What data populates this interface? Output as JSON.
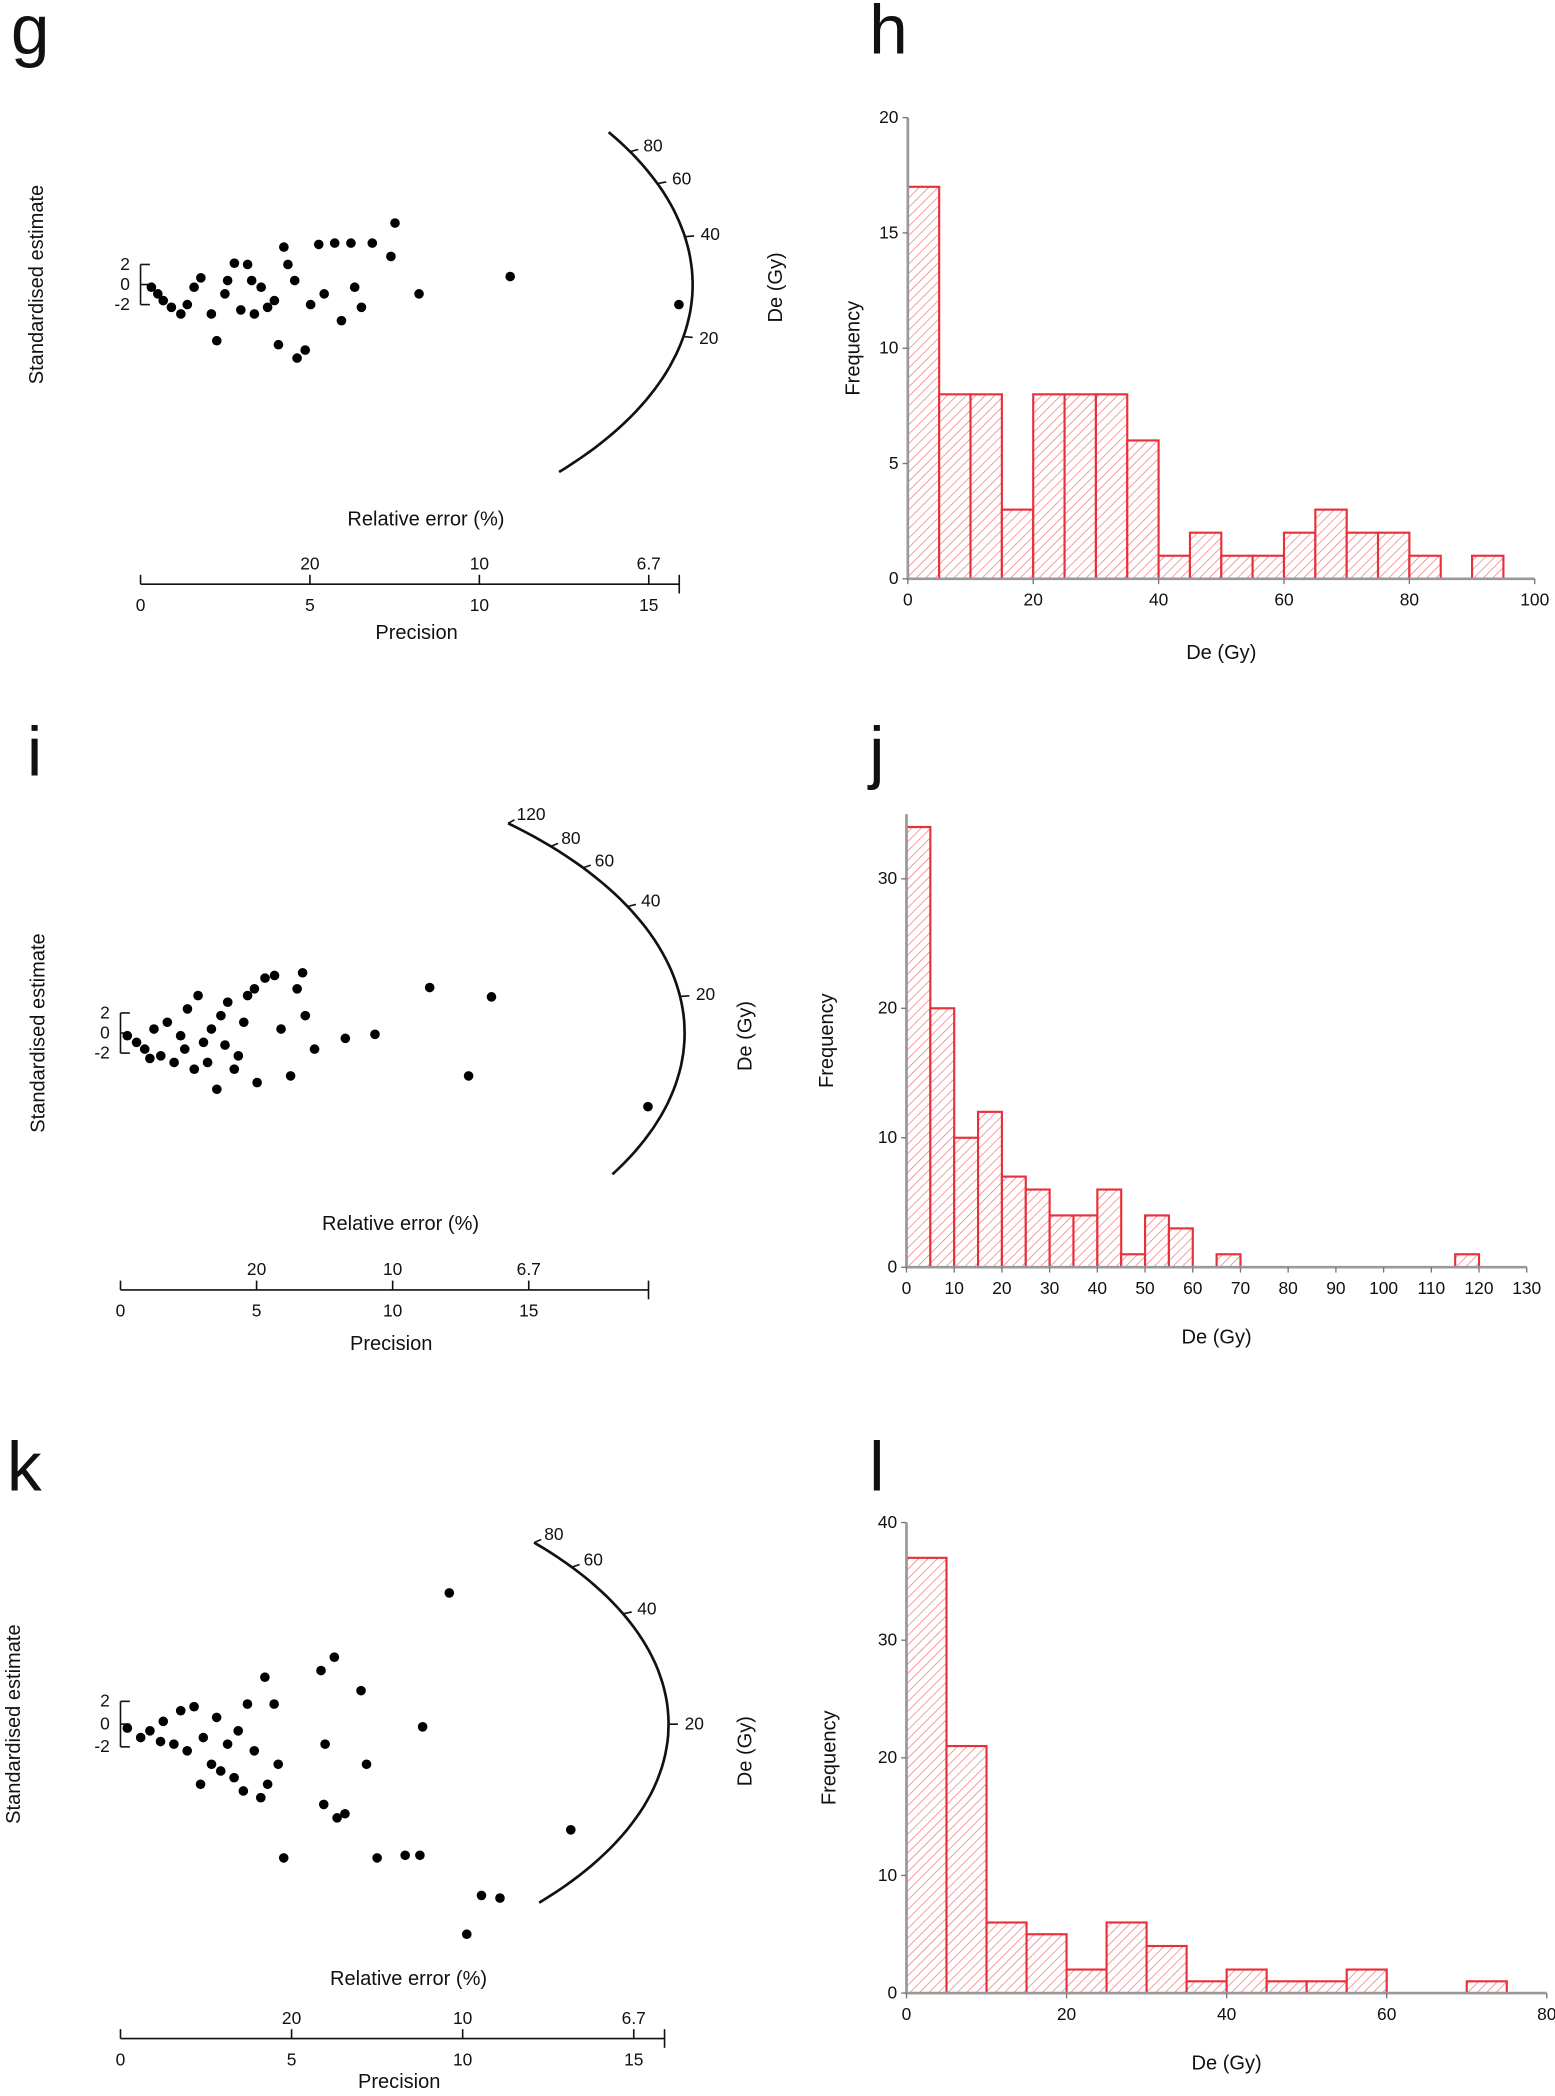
{
  "chart_data": [
    {
      "type": "radial",
      "panel": "g",
      "y_label": "Standardised estimate",
      "x_label": "Precision",
      "x2_label": "Relative error (%)",
      "arc_label": "De (Gy)",
      "xlim": [
        0,
        15.9
      ],
      "xticks": [
        0,
        5,
        10,
        15
      ],
      "x2ticks": [
        {
          "value": 5,
          "label": "20"
        },
        {
          "value": 10,
          "label": "10"
        },
        {
          "value": 15,
          "label": "6.7"
        }
      ],
      "ylim": [
        -19.6,
        15.7
      ],
      "yticks": [
        -2,
        0,
        2
      ],
      "arclim": [
        5.3,
        98
      ],
      "arcticks": [
        20,
        40,
        60,
        80
      ],
      "x": [
        0.32,
        0.67,
        0.91,
        1.19,
        1.58,
        1.78,
        2.09,
        2.25,
        2.57,
        2.77,
        2.96,
        3.16,
        3.36,
        3.56,
        3.75,
        3.95,
        4.07,
        4.23,
        4.35,
        4.55,
        4.62,
        4.86,
        5.26,
        5.42,
        5.73,
        5.93,
        6.21,
        6.32,
        6.52,
        6.84,
        7.39,
        7.51,
        8.22,
        10.91,
        15.89,
        1.38,
        2.49,
        0.51,
        3.28,
        5.02
      ],
      "values": [
        -0.27,
        -1.6,
        -2.27,
        -2.93,
        -0.27,
        0.67,
        -2.93,
        -5.6,
        0.4,
        2.13,
        -2.53,
        2.0,
        -2.93,
        -0.27,
        -2.27,
        -1.6,
        -6.0,
        3.73,
        2.0,
        0.4,
        -7.33,
        -6.53,
        4.0,
        -0.93,
        4.13,
        -3.6,
        4.13,
        -0.27,
        -2.27,
        4.13,
        2.8,
        6.13,
        -0.93,
        0.8,
        -2.0,
        -2.0,
        -0.93,
        -0.93,
        0.4,
        -2.0
      ]
    },
    {
      "type": "histogram",
      "panel": "h",
      "x_label": "De (Gy)",
      "y_label": "Frequency",
      "color": "#e8303a",
      "bins": [
        0,
        5,
        10,
        15,
        20,
        25,
        30,
        35,
        40,
        45,
        50,
        55,
        60,
        65,
        70,
        75,
        80,
        85,
        90,
        95
      ],
      "values": [
        17,
        8,
        8,
        3,
        8,
        8,
        8,
        6,
        1,
        2,
        1,
        1,
        2,
        3,
        2,
        2,
        1,
        0,
        1
      ],
      "xlim": [
        0,
        100
      ],
      "xticks": [
        0,
        20,
        40,
        60,
        80,
        100
      ],
      "ylim": [
        0,
        20
      ],
      "yticks": [
        0,
        5,
        10,
        15,
        20
      ]
    },
    {
      "type": "radial",
      "panel": "i",
      "y_label": "Standardised estimate",
      "x_label": "Precision",
      "x2_label": "Relative error (%)",
      "arc_label": "De (Gy)",
      "xlim": [
        0,
        19.4
      ],
      "xticks": [
        0,
        5,
        10,
        15
      ],
      "x2ticks": [
        {
          "value": 5,
          "label": "20"
        },
        {
          "value": 10,
          "label": "10"
        },
        {
          "value": 15,
          "label": "6.7"
        }
      ],
      "ylim": [
        -15.6,
        23
      ],
      "yticks": [
        -2,
        0,
        2
      ],
      "arclim": [
        5.3,
        120
      ],
      "arcticks": [
        20,
        40,
        60,
        80,
        120
      ],
      "x": [
        0.25,
        0.59,
        0.89,
        1.23,
        1.48,
        1.72,
        1.97,
        2.21,
        2.46,
        2.71,
        2.85,
        3.05,
        3.34,
        3.54,
        3.69,
        3.94,
        4.18,
        4.33,
        4.53,
        4.67,
        4.92,
        5.02,
        5.31,
        5.66,
        5.9,
        6.25,
        6.49,
        6.69,
        6.79,
        7.13,
        8.26,
        9.35,
        11.36,
        13.63,
        12.79,
        19.38,
        1.08,
        2.36,
        3.2,
        3.84
      ],
      "values": [
        -0.27,
        -0.93,
        -1.6,
        0.4,
        -2.27,
        1.07,
        -2.93,
        -0.27,
        2.4,
        -3.6,
        3.73,
        -0.93,
        0.4,
        -5.6,
        1.73,
        3.07,
        -3.6,
        -2.27,
        1.07,
        3.73,
        4.4,
        -4.93,
        5.47,
        5.73,
        0.4,
        -4.27,
        4.4,
        6.0,
        1.73,
        -1.6,
        -0.53,
        -0.13,
        4.53,
        3.6,
        -4.27,
        -7.33,
        -2.53,
        -1.6,
        -2.93,
        -1.2
      ]
    },
    {
      "type": "histogram",
      "panel": "j",
      "x_label": "De (Gy)",
      "y_label": "Frequency",
      "color": "#e8303a",
      "bins": [
        0,
        5,
        10,
        15,
        20,
        25,
        30,
        35,
        40,
        45,
        50,
        55,
        60,
        65,
        70,
        75,
        80,
        85,
        90,
        95,
        100,
        105,
        110,
        115,
        120
      ],
      "values": [
        34,
        20,
        10,
        12,
        7,
        6,
        4,
        4,
        6,
        1,
        4,
        3,
        0,
        1,
        0,
        0,
        0,
        0,
        0,
        0,
        0,
        0,
        0,
        1
      ],
      "xlim": [
        0,
        130
      ],
      "xticks": [
        0,
        10,
        20,
        30,
        40,
        50,
        60,
        70,
        80,
        90,
        100,
        110,
        120,
        130
      ],
      "ylim": [
        0,
        35
      ],
      "yticks": [
        0,
        10,
        20,
        30
      ]
    },
    {
      "type": "radial",
      "panel": "k",
      "y_label": "Standardised estimate",
      "x_label": "Precision",
      "x2_label": "Relative error (%)",
      "arc_label": "De (Gy)",
      "xlim": [
        0,
        15.9
      ],
      "xticks": [
        0,
        5,
        10,
        15
      ],
      "x2ticks": [
        {
          "value": 5,
          "label": "20"
        },
        {
          "value": 10,
          "label": "10"
        },
        {
          "value": 15,
          "label": "6.7"
        }
      ],
      "ylim": [
        -20,
        17.6
      ],
      "yticks": [
        -2,
        0,
        2
      ],
      "arclim": [
        5.2,
        80
      ],
      "arcticks": [
        20,
        40,
        60,
        80
      ],
      "x": [
        0.2,
        0.59,
        0.86,
        1.17,
        1.25,
        1.56,
        1.76,
        1.95,
        2.15,
        2.34,
        2.42,
        2.66,
        2.81,
        2.93,
        3.13,
        3.32,
        3.44,
        3.59,
        3.71,
        3.91,
        4.1,
        4.22,
        4.3,
        4.49,
        4.61,
        4.77,
        5.86,
        5.98,
        5.94,
        6.25,
        6.33,
        6.56,
        7.03,
        7.19,
        7.5,
        8.32,
        8.75,
        8.83,
        9.61,
        10.55,
        11.09,
        10.12,
        13.16
      ],
      "values": [
        -0.35,
        -1.18,
        -0.59,
        -1.53,
        0.24,
        -1.76,
        1.18,
        -2.35,
        1.53,
        -5.29,
        -1.18,
        -3.53,
        0.59,
        -4.12,
        -1.76,
        -4.71,
        -0.59,
        -5.88,
        1.76,
        -2.35,
        -6.47,
        4.12,
        -5.29,
        1.76,
        -3.53,
        -11.76,
        4.71,
        -1.76,
        -7.06,
        5.88,
        -8.24,
        -7.88,
        2.94,
        -3.53,
        -11.76,
        -11.53,
        -11.53,
        -0.24,
        11.53,
        -15.06,
        -15.29,
        -18.47,
        -9.29
      ]
    },
    {
      "type": "histogram",
      "panel": "l",
      "x_label": "De (Gy)",
      "y_label": "Frequency",
      "color": "#e8303a",
      "bins": [
        0,
        5,
        10,
        15,
        20,
        25,
        30,
        35,
        40,
        45,
        50,
        55,
        60,
        65,
        70,
        75
      ],
      "values": [
        37,
        21,
        6,
        5,
        2,
        6,
        4,
        1,
        2,
        1,
        1,
        2,
        0,
        0,
        1
      ],
      "xlim": [
        0,
        80
      ],
      "xticks": [
        0,
        20,
        40,
        60,
        80
      ],
      "ylim": [
        0,
        40
      ],
      "yticks": [
        0,
        10,
        20,
        30,
        40
      ]
    }
  ]
}
